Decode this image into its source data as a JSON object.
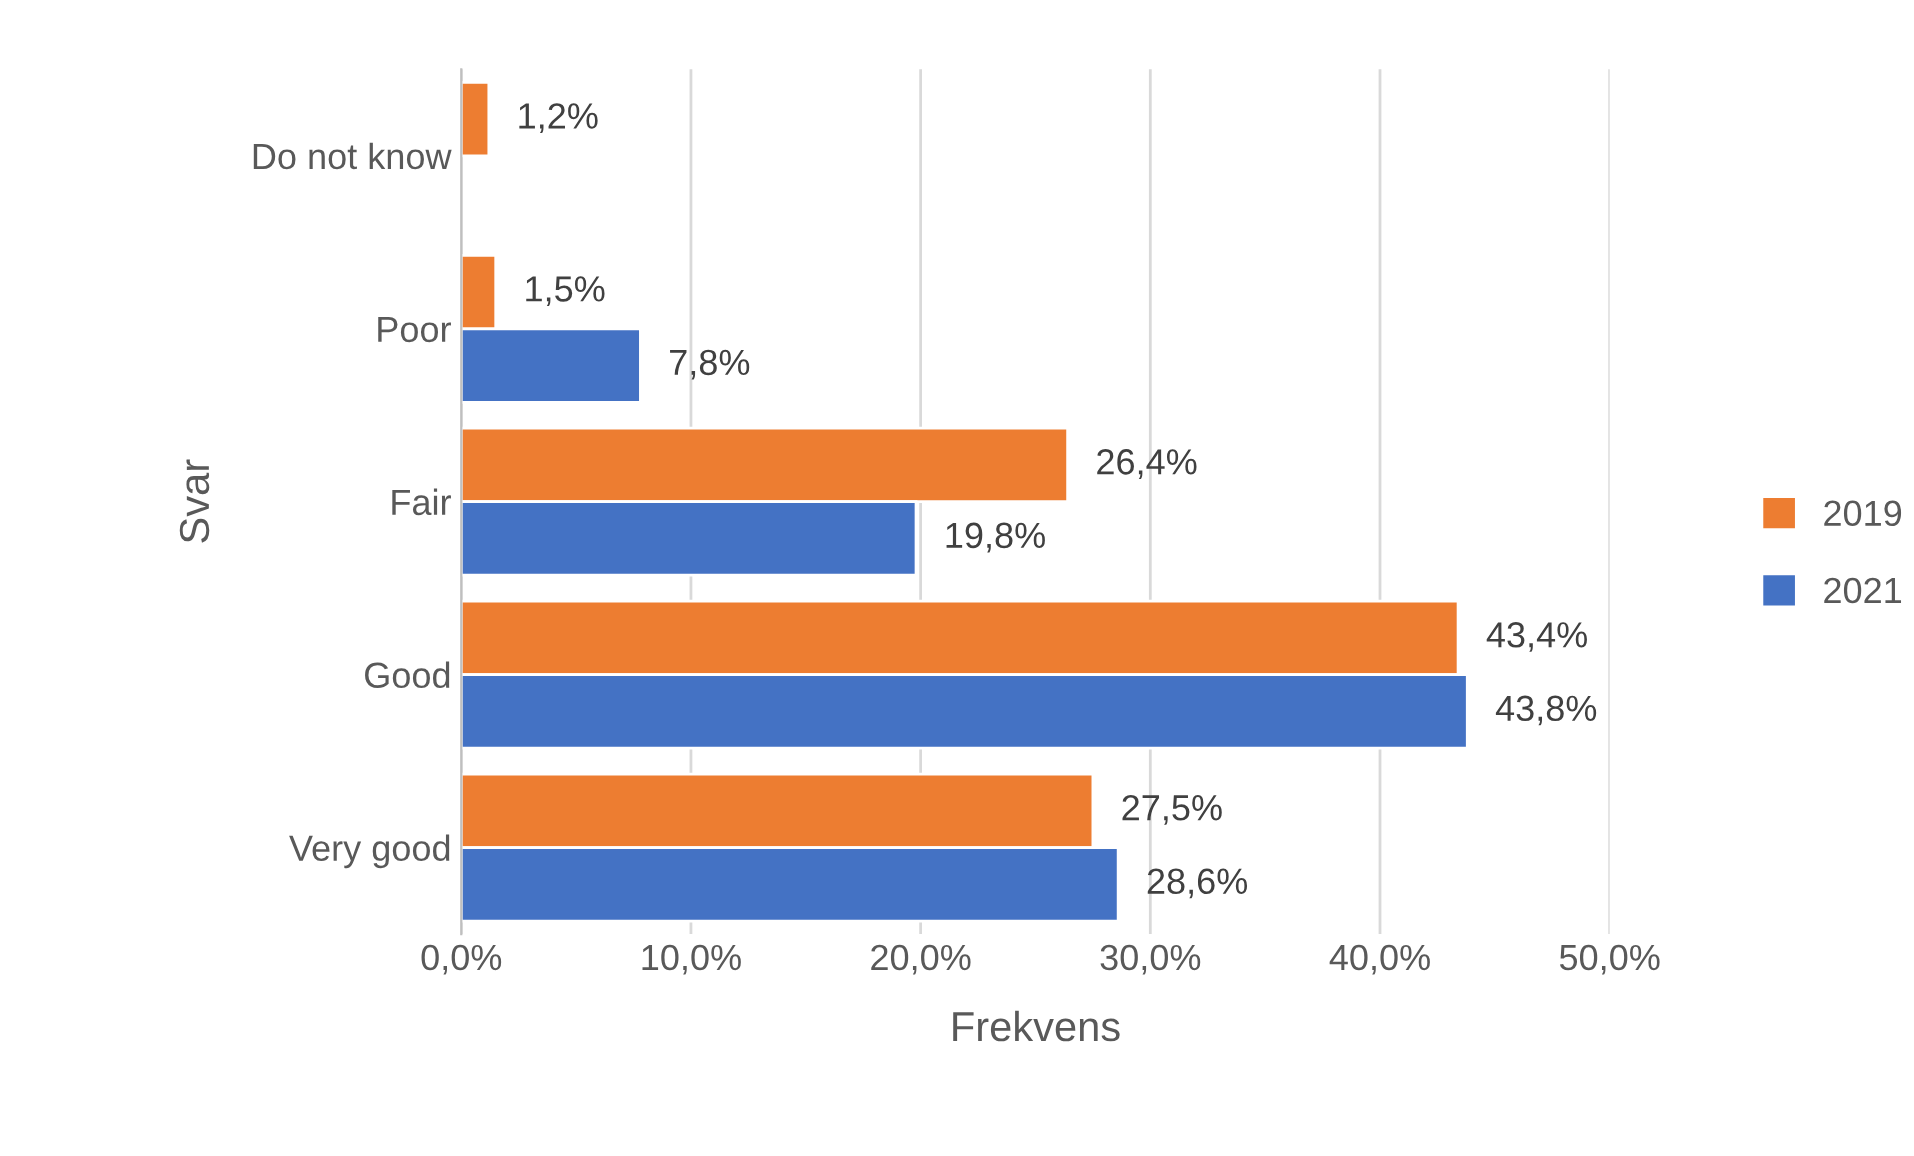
{
  "chart_data": {
    "type": "bar",
    "orientation": "horizontal",
    "xlabel": "Frekvens",
    "ylabel": "Svar",
    "categories": [
      "Do not know",
      "Poor",
      "Fair",
      "Good",
      "Very good"
    ],
    "series": [
      {
        "name": "2019",
        "color": "#ed7d31",
        "values": [
          1.2,
          1.5,
          26.4,
          43.4,
          27.5
        ],
        "value_labels": [
          "1,2%",
          "1,5%",
          "26,4%",
          "43,4%",
          "27,5%"
        ]
      },
      {
        "name": "2021",
        "color": "#4472c4",
        "values": [
          null,
          7.8,
          19.8,
          43.8,
          28.6
        ],
        "value_labels": [
          null,
          "7,8%",
          "19,8%",
          "43,8%",
          "28,6%"
        ]
      }
    ],
    "xlim": [
      0,
      50
    ],
    "xticks": [
      {
        "value": 0,
        "label": "0,0%"
      },
      {
        "value": 10,
        "label": "10,0%"
      },
      {
        "value": 20,
        "label": "20,0%"
      },
      {
        "value": 30,
        "label": "30,0%"
      },
      {
        "value": 40,
        "label": "40,0%"
      },
      {
        "value": 50,
        "label": "50,0%"
      }
    ],
    "grid": "x",
    "legend": "right"
  }
}
